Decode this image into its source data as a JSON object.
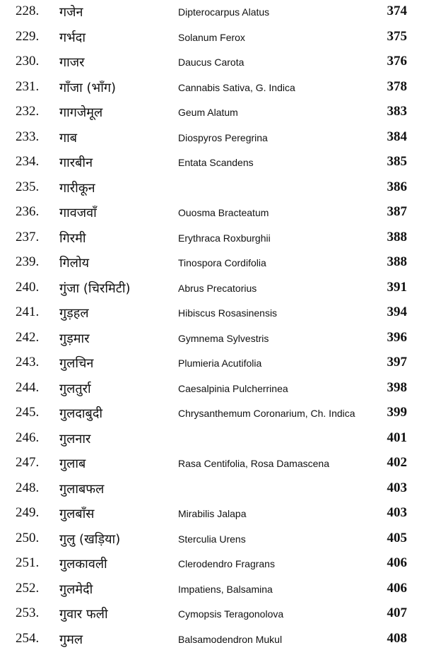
{
  "table": {
    "rows": [
      {
        "number": "228.",
        "hindi": "गजेन",
        "latin": "Dipterocarpus Alatus",
        "page": "374"
      },
      {
        "number": "229.",
        "hindi": "गर्भदा",
        "latin": "Solanum Ferox",
        "page": "375"
      },
      {
        "number": "230.",
        "hindi": "गाजर",
        "latin": "Daucus Carota",
        "page": "376"
      },
      {
        "number": "231.",
        "hindi": "गाँजा (भाँग)",
        "latin": "Cannabis Sativa, G. Indica",
        "page": "378"
      },
      {
        "number": "232.",
        "hindi": "गागजेमूल",
        "latin": "Geum Alatum",
        "page": "383"
      },
      {
        "number": "233.",
        "hindi": "गाब",
        "latin": "Diospyros Peregrina",
        "page": "384"
      },
      {
        "number": "234.",
        "hindi": "गारबीन",
        "latin": "Entata Scandens",
        "page": "385"
      },
      {
        "number": "235.",
        "hindi": "गारीकून",
        "page": "386"
      },
      {
        "number": "236.",
        "hindi": "गावजवाँ",
        "latin": "Ouosma Bracteatum",
        "page": "387"
      },
      {
        "number": "237.",
        "hindi": "गिरमी",
        "latin": "Erythraca Roxburghii",
        "page": "388"
      },
      {
        "number": "239.",
        "hindi": "गिलोय",
        "latin": "Tinospora Cordifolia",
        "page": "388"
      },
      {
        "number": "240.",
        "hindi": "गुंजा (चिरमिटी)",
        "latin": "Abrus Precatorius",
        "page": "391"
      },
      {
        "number": "241.",
        "hindi": "गुड़हल",
        "latin": "Hibiscus Rosasinensis",
        "page": "394"
      },
      {
        "number": "242.",
        "hindi": "गुड़मार",
        "latin": "Gymnema Sylvestris",
        "page": "396"
      },
      {
        "number": "243.",
        "hindi": "गुलचिन",
        "latin": "Plumieria Acutifolia",
        "page": "397"
      },
      {
        "number": "244.",
        "hindi": "गुलतुर्रा",
        "latin": "Caesalpinia Pulcherrinea",
        "page": "398"
      },
      {
        "number": "245.",
        "hindi": "गुलदाबुदी",
        "latin": "Chrysanthemum Coronarium, Ch. Indica",
        "page": "399"
      },
      {
        "number": "246.",
        "hindi": "गुलनार",
        "page": "401"
      },
      {
        "number": "247.",
        "hindi": "गुलाब",
        "latin": "Rasa Centifolia, Rosa Damascena",
        "page": "402"
      },
      {
        "number": "248.",
        "hindi": "गुलाबफल",
        "page": "403"
      },
      {
        "number": "249.",
        "hindi": "गुलबाँस",
        "latin": "Mirabilis Jalapa",
        "page": "403"
      },
      {
        "number": "250.",
        "hindi": "गुलु (खड़िया)",
        "latin": "Sterculia Urens",
        "page": "405"
      },
      {
        "number": "251.",
        "hindi": "गुलकावली",
        "latin": "Clerodendro Fragrans",
        "page": "406"
      },
      {
        "number": "252.",
        "hindi": "गुलमेदी",
        "latin": "Impatiens, Balsamina",
        "page": "406"
      },
      {
        "number": "253.",
        "hindi": "गुवार फली",
        "latin": "Cymopsis Teragonolova",
        "page": "407"
      },
      {
        "number": "254.",
        "hindi": "गुमल",
        "latin": "Balsamodendron Mukul",
        "page": "408"
      }
    ]
  }
}
